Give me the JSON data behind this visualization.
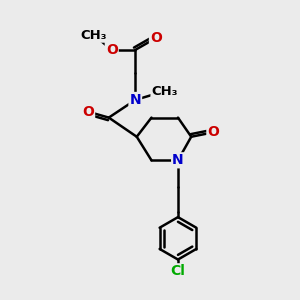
{
  "background_color": "#ebebeb",
  "bond_color": "#000000",
  "N_color": "#0000cc",
  "O_color": "#cc0000",
  "Cl_color": "#00aa00",
  "line_width": 1.8,
  "font_size": 10,
  "figsize": [
    3.0,
    3.0
  ],
  "dpi": 100,
  "xlim": [
    0,
    10
  ],
  "ylim": [
    0,
    10
  ]
}
